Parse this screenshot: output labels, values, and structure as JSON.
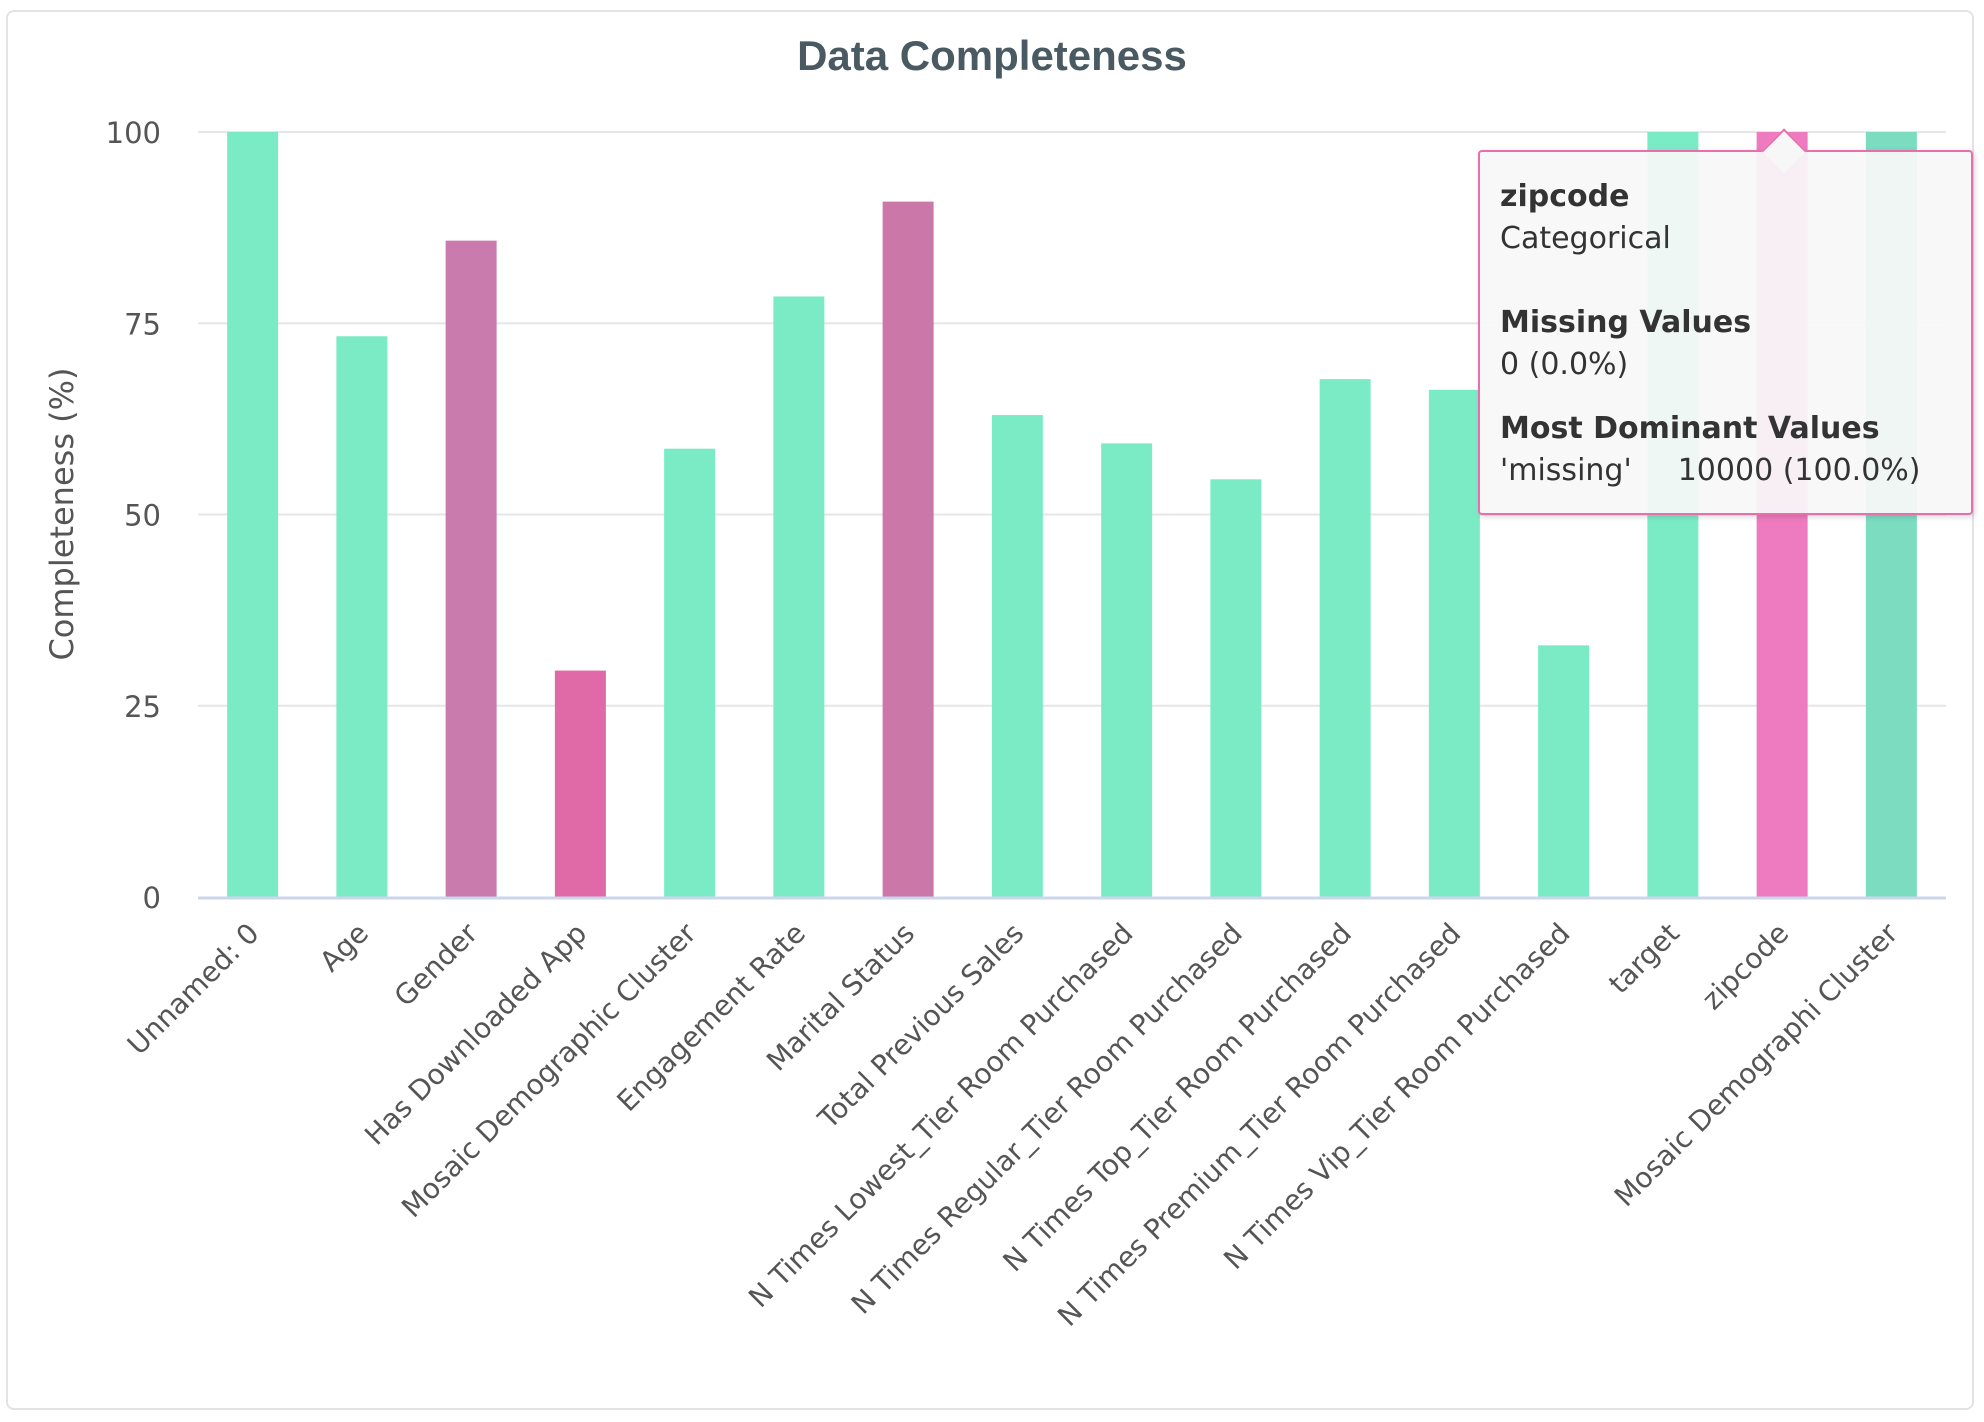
{
  "chart_data": {
    "type": "bar",
    "title": "Data Completeness",
    "xlabel": "",
    "ylabel": "Completeness (%)",
    "ylim": [
      0,
      100
    ],
    "yticks": [
      0,
      25,
      50,
      75,
      100
    ],
    "grid": true,
    "categories": [
      "Unnamed: 0",
      "Age",
      "Gender",
      "Has Downloaded App",
      "Mosaic Demographic Cluster",
      "Engagement Rate",
      "Marital Status",
      "Total Previous Sales",
      "N Times Lowest_Tier Room Purchased",
      "N Times Regular_Tier Room Purchased",
      "N Times Top_Tier Room Purchased",
      "N Times Premium_Tier Room Purchased",
      "N Times Vip_Tier Room Purchased",
      "target",
      "zipcode",
      "Mosaic Demographi Cluster"
    ],
    "values": [
      100,
      73.3,
      85.8,
      29.6,
      58.6,
      78.5,
      90.9,
      63.0,
      59.3,
      54.6,
      67.7,
      66.3,
      32.9,
      100,
      100,
      100
    ],
    "colors": [
      "#7bebc6",
      "#7bebc6",
      "#c97bad",
      "#e06aa8",
      "#7bebc6",
      "#7bebc6",
      "#cb77a8",
      "#7bebc6",
      "#7bebc6",
      "#7bebc6",
      "#7bebc6",
      "#7bebc6",
      "#7bebc6",
      "#7bebc6",
      "#ee7bbf",
      "#7bdcc0"
    ]
  },
  "tooltip": {
    "name": "zipcode",
    "type": "Categorical",
    "missing_header": "Missing Values",
    "missing_value": "0 (0.0%)",
    "dominant_header": "Most Dominant Values",
    "dominant_key": "'missing'",
    "dominant_value": "10000 (100.0%)"
  }
}
